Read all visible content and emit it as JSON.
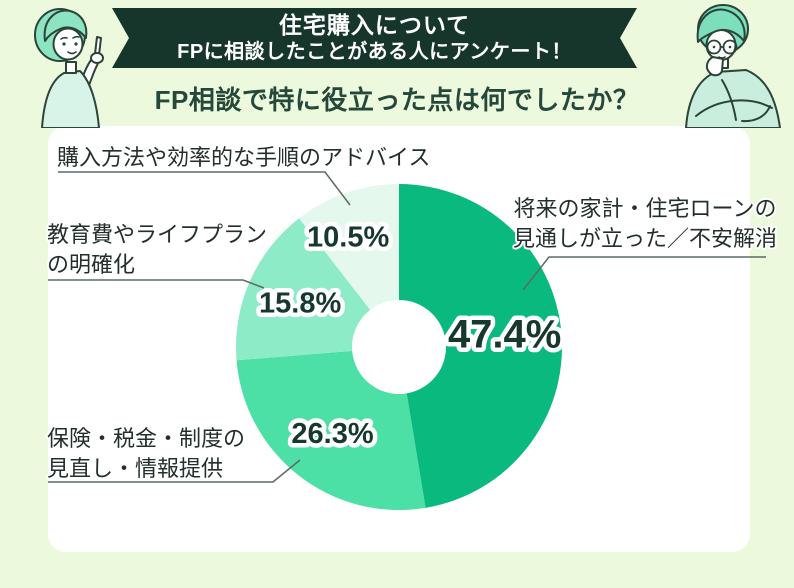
{
  "page": {
    "background": "#edf9dd",
    "card_background": "#ffffff"
  },
  "header": {
    "ribbon_line1": "住宅購入について",
    "ribbon_line2": "FPに相談したことがある人にアンケート！",
    "ribbon_bg": "#16352b",
    "question": "FP相談で特に役立った点は何でしたか？"
  },
  "illustrations": {
    "left": "woman-pointing-up",
    "right": "man-thinking-hand-on-chin"
  },
  "chart_data": {
    "type": "pie",
    "subtype": "donut",
    "title": "FP相談で特に役立った点は何でしたか？",
    "start_angle_deg": 0,
    "direction": "clockwise",
    "value_suffix": "%",
    "legend_position": "outside-callouts",
    "slices": [
      {
        "label": "将来の家計・住宅ローンの\n見通しが立った／不安解消",
        "value": 47.4,
        "color": "#0ab97e"
      },
      {
        "label": "保険・税金・制度の\n見直し・情報提供",
        "value": 26.3,
        "color": "#4de0a6"
      },
      {
        "label": "教育費やライフプラン\nの明確化",
        "value": 15.8,
        "color": "#8debc8"
      },
      {
        "label": "購入方法や効率的な手順のアドバイス",
        "value": 10.5,
        "color": "#e4f8ee"
      }
    ],
    "colors": {
      "percent_text": "#16382d",
      "leader_line": "#5b6b63"
    }
  }
}
